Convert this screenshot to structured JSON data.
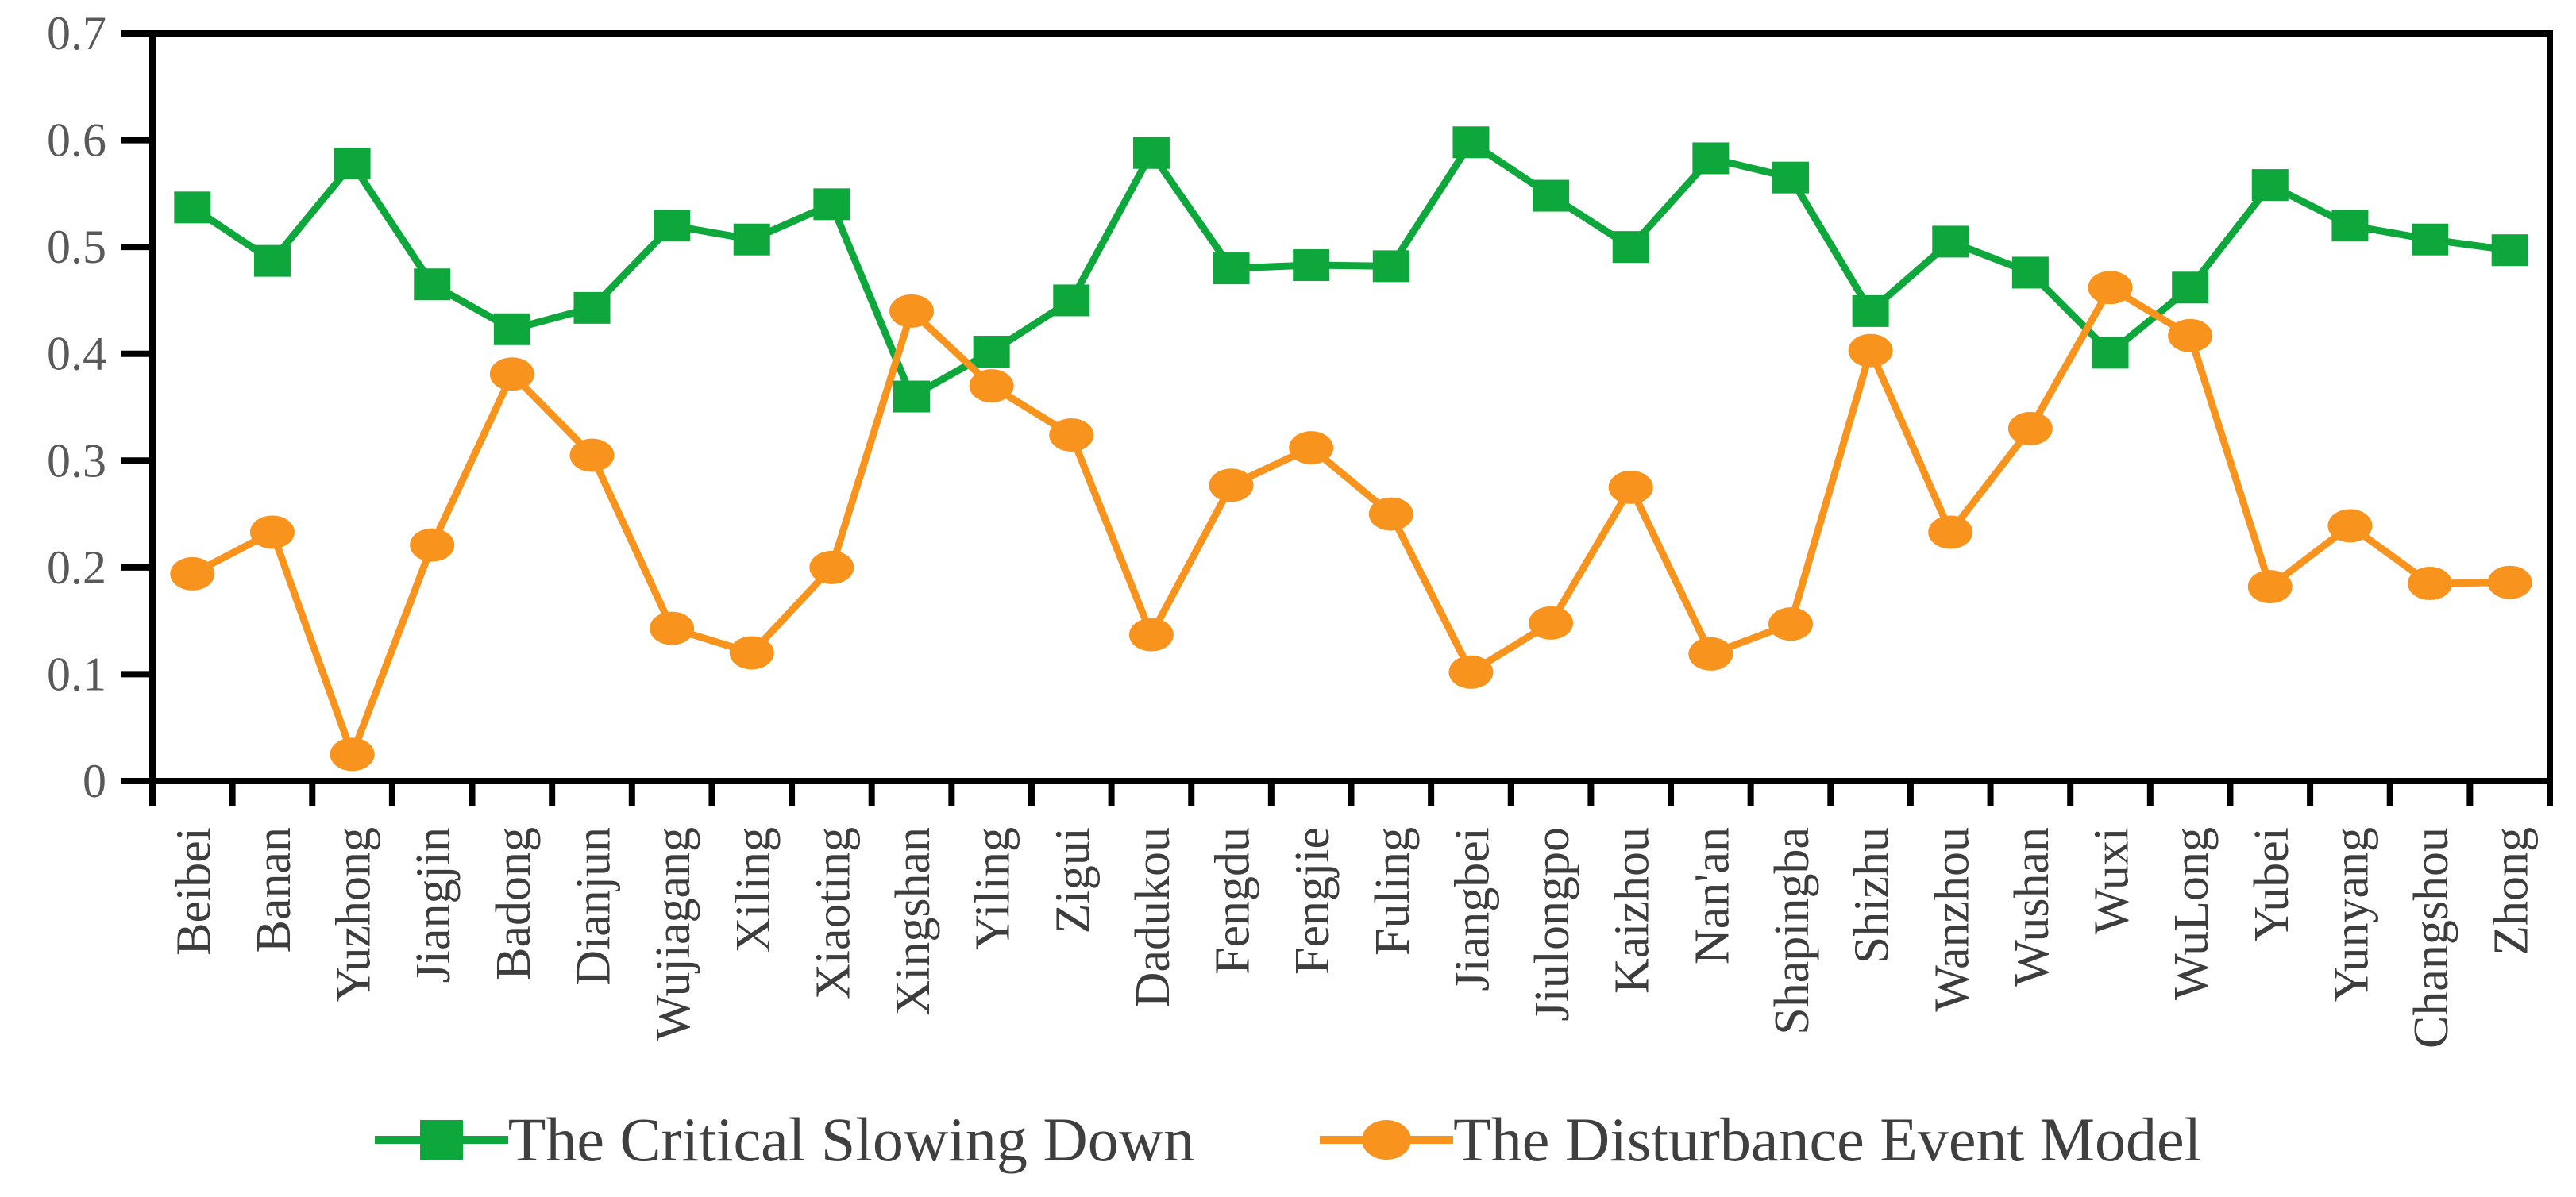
{
  "figure": {
    "background": "#ffffff"
  },
  "colors": {
    "axis": "#000000",
    "y_tick_label": "#595959",
    "x_tick_label": "#3d3d3d",
    "legend_text": "#3f3f3f",
    "series_green": "#0ea73c",
    "series_orange": "#f8941e"
  },
  "chart_data": {
    "type": "line",
    "title": "",
    "xlabel": "",
    "ylabel": "",
    "grid": false,
    "legend_position": "bottom",
    "ylim": [
      0,
      0.7
    ],
    "yticks": [
      0,
      0.1,
      0.2,
      0.3,
      0.4,
      0.5,
      0.6,
      0.7
    ],
    "ytick_labels": [
      "0",
      "0.1",
      "0.2",
      "0.3",
      "0.4",
      "0.5",
      "0.6",
      "0.7"
    ],
    "categories": [
      "Beibei",
      "Banan",
      "Yuzhong",
      "Jiangjin",
      "Badong",
      "Dianjun",
      "Wujiagang",
      "Xiling",
      "Xiaoting",
      "Xingshan",
      "Yiling",
      "Zigui",
      "Dadukou",
      "Fengdu",
      "Fengjie",
      "Fuling",
      "Jiangbei",
      "Jiulongpo",
      "Kaizhou",
      "Nan'an",
      "Shapingba",
      "Shizhu",
      "Wanzhou",
      "Wushan",
      "Wuxi",
      "WuLong",
      "Yubei",
      "Yunyang",
      "Changshou",
      "Zhong"
    ],
    "series": [
      {
        "name": "The Critical Slowing Down",
        "color": "#0ea73c",
        "marker": "square",
        "values": [
          0.537,
          0.487,
          0.578,
          0.465,
          0.423,
          0.443,
          0.52,
          0.507,
          0.54,
          0.36,
          0.402,
          0.45,
          0.588,
          0.48,
          0.483,
          0.482,
          0.598,
          0.548,
          0.5,
          0.583,
          0.565,
          0.44,
          0.505,
          0.476,
          0.401,
          0.462,
          0.558,
          0.52,
          0.507,
          0.497
        ]
      },
      {
        "name": "The Disturbance Event Model",
        "color": "#f8941e",
        "marker": "circle",
        "values": [
          0.194,
          0.233,
          0.025,
          0.221,
          0.381,
          0.305,
          0.143,
          0.12,
          0.2,
          0.44,
          0.37,
          0.324,
          0.137,
          0.277,
          0.312,
          0.25,
          0.102,
          0.148,
          0.275,
          0.119,
          0.147,
          0.403,
          0.233,
          0.33,
          0.462,
          0.417,
          0.182,
          0.239,
          0.185,
          0.186
        ]
      }
    ]
  }
}
